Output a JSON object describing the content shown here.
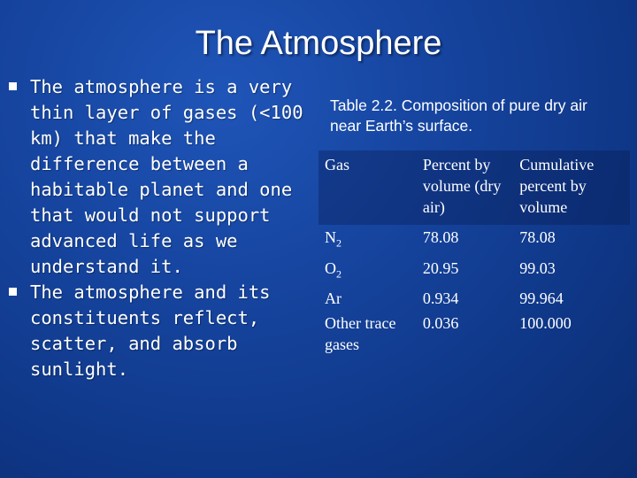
{
  "slide": {
    "title": "The Atmosphere",
    "bullets": [
      {
        "text": "The atmosphere is a very thin layer of gases (<100 km) that make the difference between a habitable planet and one that would not support advanced life as we understand it."
      },
      {
        "text": "The atmosphere and its constituents reflect, scatter, and absorb sunlight."
      }
    ]
  },
  "table": {
    "caption": "Table 2.2. Composition of pure dry air near Earth’s surface.",
    "headers": [
      "Gas",
      "Percent by volume (dry air)",
      "Cumulative percent by volume"
    ],
    "rows": [
      {
        "gas": "N",
        "gas_sub": "2",
        "percent": "78.08",
        "cumulative": "78.08"
      },
      {
        "gas": "O",
        "gas_sub": "2",
        "percent": "20.95",
        "cumulative": "99.03"
      },
      {
        "gas": "Ar",
        "gas_sub": "",
        "percent": "0.934",
        "cumulative": "99.964"
      },
      {
        "gas": "Other trace gases",
        "gas_sub": "",
        "percent": "0.036",
        "cumulative": "100.000"
      }
    ]
  }
}
